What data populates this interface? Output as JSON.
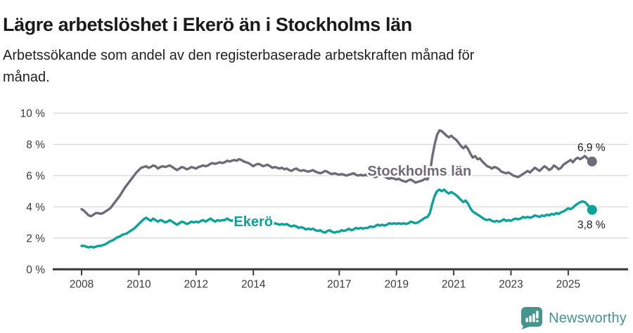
{
  "header": {
    "title": "Lägre arbetslöshet i Ekerö än i Stockholms län",
    "subtitle_line1": "Arbetssökande som andel av den registerbaserade arbetskraften månad för",
    "subtitle_line2": "månad."
  },
  "footer": {
    "brand": "Newsworthy",
    "brand_color": "#45948e"
  },
  "chart_data": {
    "type": "line",
    "title": "Lägre arbetslöshet i Ekerö än i Stockholms län",
    "x_unit": "month",
    "start_year": 2008,
    "start_month": 1,
    "ylim": [
      0,
      10
    ],
    "grid": true,
    "yticks": [
      {
        "value": 0,
        "label": "0 %"
      },
      {
        "value": 2,
        "label": "2 %"
      },
      {
        "value": 4,
        "label": "4 %"
      },
      {
        "value": 6,
        "label": "6 %"
      },
      {
        "value": 8,
        "label": "8 %"
      },
      {
        "value": 10,
        "label": "10 %"
      }
    ],
    "xticks": [
      {
        "year": 2008,
        "label": "2008"
      },
      {
        "year": 2010,
        "label": "2010"
      },
      {
        "year": 2012,
        "label": "2012"
      },
      {
        "year": 2014,
        "label": "2014"
      },
      {
        "year": 2017,
        "label": "2017"
      },
      {
        "year": 2019,
        "label": "2019"
      },
      {
        "year": 2021,
        "label": "2021"
      },
      {
        "year": 2023,
        "label": "2023"
      },
      {
        "year": 2025,
        "label": "2025"
      }
    ],
    "series": [
      {
        "name": "Stockholms län",
        "color": "#6f6b76",
        "end_label": "6,9 %",
        "end_label_position": "above",
        "inline_label": {
          "year": 2019.8,
          "value": 6.0
        },
        "values": [
          3.85,
          3.75,
          3.6,
          3.45,
          3.4,
          3.5,
          3.6,
          3.6,
          3.55,
          3.6,
          3.7,
          3.8,
          3.9,
          4.1,
          4.3,
          4.5,
          4.7,
          4.95,
          5.2,
          5.4,
          5.6,
          5.8,
          6.0,
          6.2,
          6.35,
          6.5,
          6.55,
          6.6,
          6.5,
          6.55,
          6.65,
          6.6,
          6.45,
          6.55,
          6.6,
          6.55,
          6.6,
          6.65,
          6.55,
          6.45,
          6.35,
          6.45,
          6.55,
          6.5,
          6.4,
          6.45,
          6.55,
          6.5,
          6.45,
          6.55,
          6.6,
          6.65,
          6.6,
          6.65,
          6.75,
          6.8,
          6.75,
          6.8,
          6.85,
          6.8,
          6.85,
          6.95,
          6.9,
          6.95,
          7.0,
          6.95,
          7.05,
          7.0,
          6.9,
          6.85,
          6.8,
          6.7,
          6.6,
          6.7,
          6.75,
          6.7,
          6.6,
          6.65,
          6.7,
          6.6,
          6.5,
          6.55,
          6.5,
          6.45,
          6.5,
          6.4,
          6.45,
          6.35,
          6.3,
          6.4,
          6.45,
          6.35,
          6.3,
          6.35,
          6.3,
          6.25,
          6.3,
          6.35,
          6.25,
          6.2,
          6.15,
          6.2,
          6.3,
          6.25,
          6.15,
          6.1,
          6.15,
          6.1,
          6.05,
          6.1,
          6.05,
          6.0,
          6.05,
          6.1,
          6.15,
          6.05,
          6.0,
          6.05,
          6.0,
          6.05,
          6.0,
          6.05,
          5.95,
          5.9,
          5.95,
          6.0,
          6.05,
          5.95,
          5.85,
          5.8,
          5.85,
          5.8,
          5.75,
          5.8,
          5.7,
          5.65,
          5.6,
          5.7,
          5.75,
          5.65,
          5.55,
          5.6,
          5.65,
          5.7,
          5.8,
          5.75,
          6.1,
          7.2,
          8.0,
          8.6,
          8.9,
          8.85,
          8.7,
          8.55,
          8.45,
          8.55,
          8.4,
          8.3,
          8.1,
          7.9,
          7.75,
          7.9,
          7.7,
          7.4,
          7.15,
          7.25,
          7.05,
          7.1,
          6.9,
          6.75,
          6.6,
          6.55,
          6.45,
          6.55,
          6.5,
          6.4,
          6.25,
          6.2,
          6.15,
          6.2,
          6.1,
          6.0,
          5.95,
          5.9,
          6.0,
          6.1,
          6.2,
          6.3,
          6.2,
          6.35,
          6.5,
          6.4,
          6.3,
          6.45,
          6.6,
          6.5,
          6.35,
          6.45,
          6.65,
          6.55,
          6.4,
          6.5,
          6.7,
          6.8,
          6.9,
          7.0,
          6.85,
          7.05,
          7.15,
          7.05,
          7.15,
          7.25,
          7.1,
          7.0,
          6.9
        ]
      },
      {
        "name": "Ekerö",
        "color": "#0aa299",
        "end_label": "3,8 %",
        "end_label_position": "below",
        "inline_label": {
          "year": 2014.0,
          "value": 2.76
        },
        "values": [
          1.5,
          1.5,
          1.45,
          1.4,
          1.45,
          1.4,
          1.45,
          1.5,
          1.5,
          1.55,
          1.6,
          1.7,
          1.8,
          1.85,
          1.95,
          2.05,
          2.1,
          2.2,
          2.25,
          2.3,
          2.4,
          2.5,
          2.6,
          2.75,
          2.9,
          3.05,
          3.2,
          3.3,
          3.2,
          3.1,
          3.25,
          3.15,
          3.05,
          3.15,
          3.1,
          3.0,
          3.05,
          3.15,
          3.05,
          2.95,
          2.85,
          2.95,
          3.05,
          3.0,
          2.9,
          2.95,
          3.05,
          3.0,
          3.05,
          3.0,
          3.1,
          3.15,
          3.05,
          3.15,
          3.25,
          3.15,
          3.05,
          3.15,
          3.1,
          3.15,
          3.15,
          3.25,
          3.15,
          3.1,
          3.2,
          3.1,
          3.25,
          3.2,
          3.1,
          3.05,
          3.1,
          3.05,
          3.1,
          3.15,
          3.1,
          3.0,
          3.05,
          2.95,
          3.0,
          2.95,
          2.9,
          2.95,
          2.9,
          2.85,
          2.9,
          2.85,
          2.9,
          2.8,
          2.75,
          2.8,
          2.75,
          2.65,
          2.7,
          2.65,
          2.55,
          2.6,
          2.55,
          2.6,
          2.5,
          2.45,
          2.5,
          2.4,
          2.35,
          2.45,
          2.5,
          2.4,
          2.35,
          2.4,
          2.4,
          2.5,
          2.45,
          2.5,
          2.6,
          2.5,
          2.55,
          2.65,
          2.6,
          2.65,
          2.6,
          2.65,
          2.65,
          2.75,
          2.7,
          2.75,
          2.85,
          2.8,
          2.85,
          2.8,
          2.85,
          2.95,
          2.9,
          2.95,
          2.9,
          2.95,
          2.9,
          2.95,
          2.9,
          2.95,
          3.05,
          3.0,
          2.95,
          3.0,
          3.1,
          3.2,
          3.3,
          3.35,
          3.6,
          4.2,
          4.7,
          5.0,
          5.1,
          5.0,
          5.1,
          4.95,
          4.85,
          4.95,
          4.85,
          4.75,
          4.6,
          4.45,
          4.3,
          4.4,
          4.2,
          3.9,
          3.7,
          3.6,
          3.5,
          3.4,
          3.3,
          3.2,
          3.15,
          3.2,
          3.1,
          3.05,
          3.1,
          3.05,
          3.1,
          3.2,
          3.1,
          3.15,
          3.1,
          3.2,
          3.25,
          3.2,
          3.25,
          3.35,
          3.3,
          3.35,
          3.3,
          3.35,
          3.45,
          3.4,
          3.35,
          3.45,
          3.4,
          3.5,
          3.45,
          3.55,
          3.5,
          3.6,
          3.55,
          3.65,
          3.7,
          3.8,
          3.9,
          3.85,
          3.95,
          4.1,
          4.2,
          4.3,
          4.35,
          4.3,
          4.15,
          3.95,
          3.8
        ]
      }
    ]
  }
}
